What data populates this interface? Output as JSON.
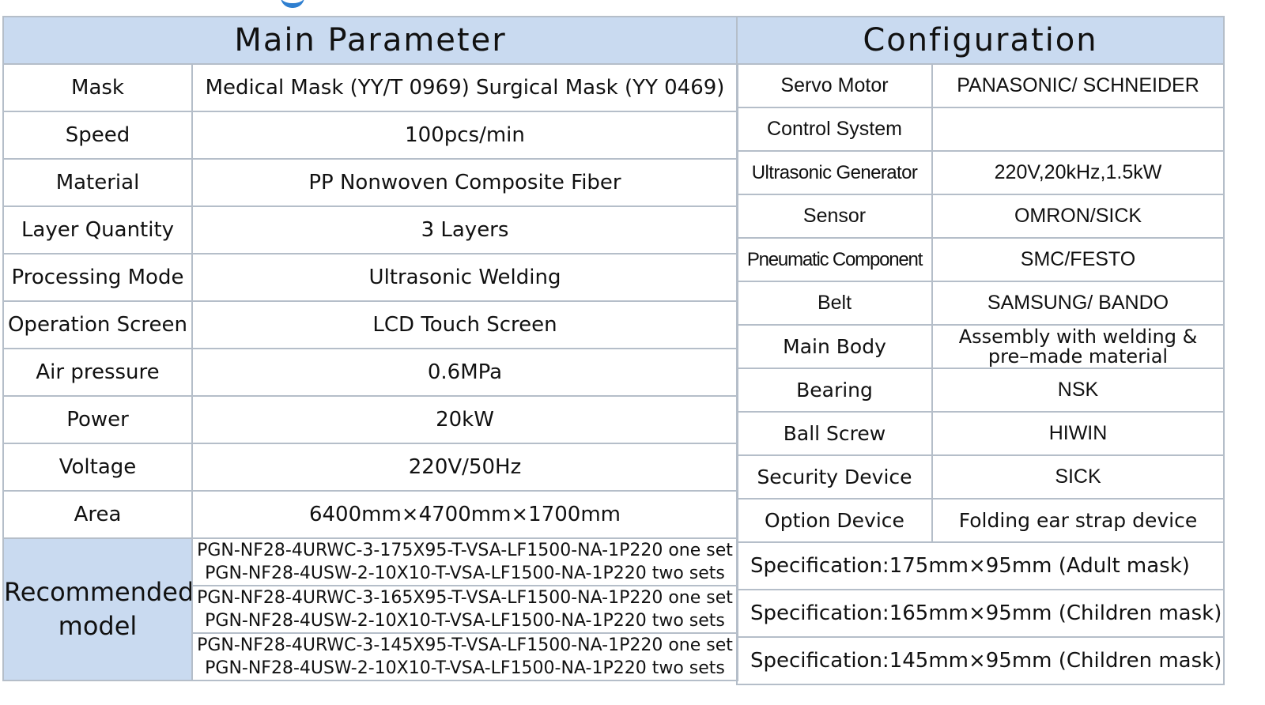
{
  "main_parameter": {
    "title": "Main Parameter",
    "rows": [
      {
        "label": "Mask",
        "value": "Medical Mask (YY/T 0969)  Surgical Mask (YY 0469)"
      },
      {
        "label": "Speed",
        "value": "100pcs/min"
      },
      {
        "label": "Material",
        "value": "PP Nonwoven Composite Fiber"
      },
      {
        "label": "Layer Quantity",
        "value": "3 Layers"
      },
      {
        "label": "Processing Mode",
        "value": "Ultrasonic Welding"
      },
      {
        "label": "Operation Screen",
        "value": "LCD Touch Screen"
      },
      {
        "label": "Air pressure",
        "value": "0.6MPa"
      },
      {
        "label": "Power",
        "value": "20kW"
      },
      {
        "label": "Voltage",
        "value": "220V/50Hz"
      },
      {
        "label": "Area",
        "value": "6400mm×4700mm×1700mm"
      }
    ],
    "recommended": {
      "label_line1": "Recommended",
      "label_line2": "model",
      "models": [
        {
          "line1": "PGN-NF28-4URWC-3-175X95-T-VSA-LF1500-NA-1P220 one set",
          "line2": "PGN-NF28-4USW-2-10X10-T-VSA-LF1500-NA-1P220 two sets"
        },
        {
          "line1": "PGN-NF28-4URWC-3-165X95-T-VSA-LF1500-NA-1P220 one set",
          "line2": "PGN-NF28-4USW-2-10X10-T-VSA-LF1500-NA-1P220 two sets"
        },
        {
          "line1": "PGN-NF28-4URWC-3-145X95-T-VSA-LF1500-NA-1P220 one set",
          "line2": "PGN-NF28-4USW-2-10X10-T-VSA-LF1500-NA-1P220 two sets"
        }
      ]
    }
  },
  "configuration": {
    "title": "Configuration",
    "rows": [
      {
        "label": "Servo Motor",
        "value": "PANASONIC/ SCHNEIDER"
      },
      {
        "label": "Control System",
        "value": ""
      },
      {
        "label": "Ultrasonic Generator",
        "value": "220V,20kHz,1.5kW"
      },
      {
        "label": "Sensor",
        "value": "OMRON/SICK"
      },
      {
        "label": "Pneumatic Component",
        "value": "SMC/FESTO"
      },
      {
        "label": "Belt",
        "value": "SAMSUNG/ BANDO"
      },
      {
        "label": "Main Body",
        "value_line1": "Assembly with welding &",
        "value_line2": "pre–made material"
      },
      {
        "label": "Bearing",
        "value": "NSK"
      },
      {
        "label": "Ball Screw",
        "value": "HIWIN"
      },
      {
        "label": "Security Device",
        "value": "SICK"
      },
      {
        "label": "Option Device",
        "value": "Folding ear strap device"
      }
    ],
    "specifications": [
      "Specification:175mm×95mm (Adult mask)",
      "Specification:165mm×95mm (Children mask)",
      "Specification:145mm×95mm (Children mask)"
    ]
  },
  "colors": {
    "header_bg": "#c9daf0",
    "border": "#b5bec9",
    "accent": "#2f7fd0"
  }
}
